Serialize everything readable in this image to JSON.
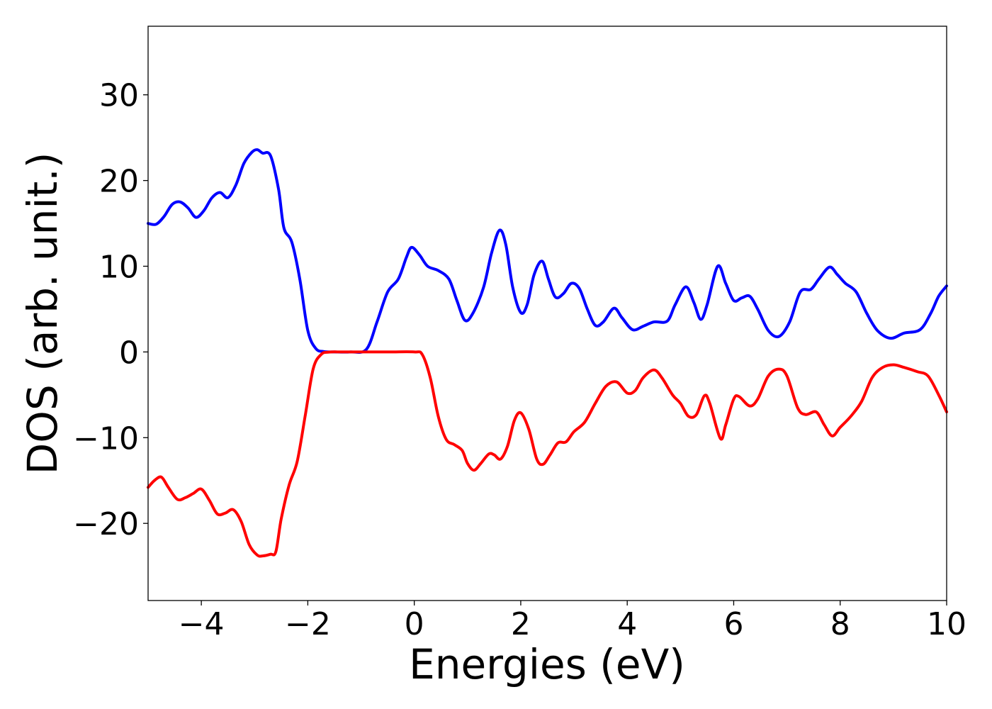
{
  "chart_data": {
    "type": "line",
    "title": "",
    "xlabel": "Energies (eV)",
    "ylabel": "DOS (arb. unit.)",
    "xlim": [
      -5,
      10
    ],
    "ylim": [
      -29,
      38
    ],
    "grid": false,
    "xticks": [
      -4,
      -2,
      0,
      2,
      4,
      6,
      8,
      10
    ],
    "xtick_labels": [
      "−4",
      "−2",
      "0",
      "2",
      "4",
      "6",
      "8",
      "10"
    ],
    "yticks": [
      -20,
      -10,
      0,
      10,
      20,
      30
    ],
    "ytick_labels": [
      "−20",
      "−10",
      "0",
      "10",
      "20",
      "30"
    ],
    "series": [
      {
        "color": "#0000ff",
        "points": [
          [
            -5.0,
            15.0
          ],
          [
            -4.85,
            14.9
          ],
          [
            -4.7,
            15.8
          ],
          [
            -4.55,
            17.2
          ],
          [
            -4.4,
            17.5
          ],
          [
            -4.25,
            16.8
          ],
          [
            -4.1,
            15.7
          ],
          [
            -3.95,
            16.5
          ],
          [
            -3.8,
            18.0
          ],
          [
            -3.65,
            18.6
          ],
          [
            -3.5,
            18.0
          ],
          [
            -3.35,
            19.5
          ],
          [
            -3.2,
            22.0
          ],
          [
            -3.05,
            23.3
          ],
          [
            -2.95,
            23.6
          ],
          [
            -2.85,
            23.2
          ],
          [
            -2.7,
            22.9
          ],
          [
            -2.55,
            19.0
          ],
          [
            -2.45,
            14.5
          ],
          [
            -2.3,
            12.8
          ],
          [
            -2.15,
            8.5
          ],
          [
            -2.0,
            2.5
          ],
          [
            -1.85,
            0.4
          ],
          [
            -1.7,
            0.05
          ],
          [
            -1.5,
            0.0
          ],
          [
            -1.2,
            0.0
          ],
          [
            -0.9,
            0.3
          ],
          [
            -0.7,
            3.5
          ],
          [
            -0.5,
            7.0
          ],
          [
            -0.3,
            8.5
          ],
          [
            -0.15,
            11.0
          ],
          [
            -0.05,
            12.2
          ],
          [
            0.1,
            11.3
          ],
          [
            0.25,
            10.0
          ],
          [
            0.45,
            9.5
          ],
          [
            0.65,
            8.5
          ],
          [
            0.8,
            6.0
          ],
          [
            0.95,
            3.7
          ],
          [
            1.1,
            4.5
          ],
          [
            1.3,
            7.5
          ],
          [
            1.45,
            11.5
          ],
          [
            1.6,
            14.2
          ],
          [
            1.72,
            12.5
          ],
          [
            1.85,
            7.5
          ],
          [
            2.0,
            4.6
          ],
          [
            2.12,
            5.5
          ],
          [
            2.25,
            9.0
          ],
          [
            2.4,
            10.6
          ],
          [
            2.52,
            8.5
          ],
          [
            2.65,
            6.4
          ],
          [
            2.8,
            6.8
          ],
          [
            2.95,
            8.0
          ],
          [
            3.1,
            7.4
          ],
          [
            3.25,
            5.0
          ],
          [
            3.4,
            3.1
          ],
          [
            3.55,
            3.5
          ],
          [
            3.75,
            5.1
          ],
          [
            3.9,
            4.0
          ],
          [
            4.1,
            2.6
          ],
          [
            4.3,
            3.0
          ],
          [
            4.5,
            3.5
          ],
          [
            4.75,
            3.6
          ],
          [
            4.9,
            5.5
          ],
          [
            5.1,
            7.6
          ],
          [
            5.25,
            5.8
          ],
          [
            5.38,
            3.8
          ],
          [
            5.5,
            5.5
          ],
          [
            5.7,
            10.0
          ],
          [
            5.85,
            8.0
          ],
          [
            6.0,
            6.0
          ],
          [
            6.15,
            6.3
          ],
          [
            6.3,
            6.5
          ],
          [
            6.45,
            5.0
          ],
          [
            6.65,
            2.5
          ],
          [
            6.85,
            1.8
          ],
          [
            7.05,
            3.5
          ],
          [
            7.25,
            7.0
          ],
          [
            7.45,
            7.3
          ],
          [
            7.6,
            8.5
          ],
          [
            7.8,
            9.9
          ],
          [
            7.95,
            9.0
          ],
          [
            8.1,
            8.0
          ],
          [
            8.3,
            7.0
          ],
          [
            8.5,
            4.5
          ],
          [
            8.7,
            2.5
          ],
          [
            8.95,
            1.6
          ],
          [
            9.2,
            2.2
          ],
          [
            9.5,
            2.6
          ],
          [
            9.7,
            4.5
          ],
          [
            9.85,
            6.5
          ],
          [
            10.0,
            7.7
          ]
        ]
      },
      {
        "color": "#ff0000",
        "points": [
          [
            -5.0,
            -15.8
          ],
          [
            -4.88,
            -15.0
          ],
          [
            -4.75,
            -14.6
          ],
          [
            -4.62,
            -15.8
          ],
          [
            -4.45,
            -17.2
          ],
          [
            -4.3,
            -17.0
          ],
          [
            -4.15,
            -16.5
          ],
          [
            -4.0,
            -16.0
          ],
          [
            -3.85,
            -17.3
          ],
          [
            -3.7,
            -18.9
          ],
          [
            -3.55,
            -18.8
          ],
          [
            -3.4,
            -18.4
          ],
          [
            -3.25,
            -19.8
          ],
          [
            -3.1,
            -22.5
          ],
          [
            -2.95,
            -23.7
          ],
          [
            -2.85,
            -23.8
          ],
          [
            -2.7,
            -23.6
          ],
          [
            -2.6,
            -23.3
          ],
          [
            -2.5,
            -19.5
          ],
          [
            -2.35,
            -15.5
          ],
          [
            -2.2,
            -12.8
          ],
          [
            -2.05,
            -7.5
          ],
          [
            -1.9,
            -2.0
          ],
          [
            -1.75,
            -0.3
          ],
          [
            -1.6,
            -0.02
          ],
          [
            -1.3,
            0.0
          ],
          [
            -0.5,
            0.0
          ],
          [
            0.0,
            0.0
          ],
          [
            0.15,
            -0.3
          ],
          [
            0.3,
            -3.0
          ],
          [
            0.45,
            -7.5
          ],
          [
            0.6,
            -10.2
          ],
          [
            0.75,
            -10.8
          ],
          [
            0.9,
            -11.5
          ],
          [
            1.0,
            -13.0
          ],
          [
            1.12,
            -13.8
          ],
          [
            1.25,
            -13.0
          ],
          [
            1.4,
            -11.9
          ],
          [
            1.5,
            -12.0
          ],
          [
            1.62,
            -12.5
          ],
          [
            1.75,
            -11.0
          ],
          [
            1.88,
            -8.0
          ],
          [
            2.0,
            -7.1
          ],
          [
            2.15,
            -9.0
          ],
          [
            2.3,
            -12.5
          ],
          [
            2.42,
            -13.1
          ],
          [
            2.55,
            -12.0
          ],
          [
            2.7,
            -10.6
          ],
          [
            2.85,
            -10.5
          ],
          [
            3.0,
            -9.3
          ],
          [
            3.2,
            -8.2
          ],
          [
            3.4,
            -6.0
          ],
          [
            3.6,
            -4.0
          ],
          [
            3.8,
            -3.5
          ],
          [
            4.0,
            -4.8
          ],
          [
            4.15,
            -4.5
          ],
          [
            4.3,
            -3.0
          ],
          [
            4.5,
            -2.1
          ],
          [
            4.65,
            -3.0
          ],
          [
            4.85,
            -5.0
          ],
          [
            5.0,
            -6.0
          ],
          [
            5.15,
            -7.5
          ],
          [
            5.3,
            -7.3
          ],
          [
            5.45,
            -5.1
          ],
          [
            5.55,
            -6.0
          ],
          [
            5.75,
            -10.1
          ],
          [
            5.85,
            -8.5
          ],
          [
            6.0,
            -5.5
          ],
          [
            6.1,
            -5.2
          ],
          [
            6.3,
            -6.3
          ],
          [
            6.45,
            -5.5
          ],
          [
            6.65,
            -2.8
          ],
          [
            6.85,
            -2.0
          ],
          [
            7.0,
            -2.8
          ],
          [
            7.2,
            -6.5
          ],
          [
            7.35,
            -7.3
          ],
          [
            7.55,
            -7.0
          ],
          [
            7.7,
            -8.5
          ],
          [
            7.85,
            -9.8
          ],
          [
            8.0,
            -8.8
          ],
          [
            8.2,
            -7.5
          ],
          [
            8.4,
            -5.8
          ],
          [
            8.6,
            -3.0
          ],
          [
            8.8,
            -1.8
          ],
          [
            9.0,
            -1.5
          ],
          [
            9.2,
            -1.8
          ],
          [
            9.45,
            -2.3
          ],
          [
            9.65,
            -2.8
          ],
          [
            9.85,
            -5.0
          ],
          [
            10.0,
            -7.0
          ]
        ]
      }
    ]
  }
}
